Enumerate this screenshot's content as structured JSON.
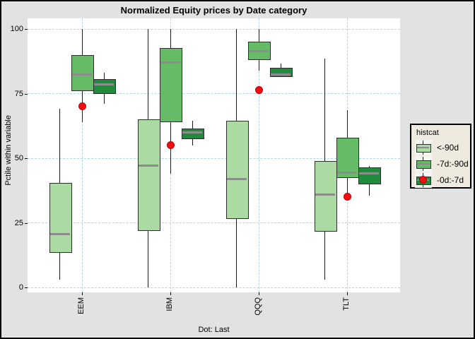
{
  "title": "Normalized Equity prices by Date category",
  "ylabel": "Pctile within variable",
  "caption": "Dot: Last",
  "legend": {
    "title": "histcat",
    "items": [
      {
        "label": "<-90d",
        "type": "box",
        "color": "#ABDBA2"
      },
      {
        "label": "-7d:-90d",
        "type": "box",
        "color": "#65BB66"
      },
      {
        "label": "-0d:-7d",
        "type": "box-dot",
        "color": "#1F8B3D",
        "dot_color": "#EE1010"
      }
    ]
  },
  "colors": {
    "outer_background": "#E2E2E2",
    "panel_background": "#FFFFFF",
    "gridline": "#ADD8E6",
    "box_border": "#2E2E2E",
    "median_line": "#8C8C8C",
    "whisker": "#1C1C1C",
    "dot_red": "#EE1010",
    "legend_background": "#EFEADF"
  },
  "chart_data": {
    "type": "boxplot",
    "title": "Normalized Equity prices by Date category",
    "xlabel": "Dot: Last",
    "ylabel": "Pctile within variable",
    "categories": [
      "EEM",
      "IBM",
      "QQQ",
      "TLT"
    ],
    "y_ticks": [
      0,
      25,
      50,
      75,
      100
    ],
    "ylim": [
      0,
      100
    ],
    "grid": "dashed",
    "legend_position": "right",
    "series": [
      {
        "name": "<-90d",
        "color": "#ABDBA2",
        "boxes": [
          {
            "low": 3,
            "q1": 14,
            "median": 20.5,
            "q3": 40.5,
            "high": 69
          },
          {
            "low": 0,
            "q1": 22.5,
            "median": 47,
            "q3": 65,
            "high": 100
          },
          {
            "low": 0,
            "q1": 27,
            "median": 42,
            "q3": 64.5,
            "high": 100
          },
          {
            "low": 3,
            "q1": 22,
            "median": 36,
            "q3": 49,
            "high": 88.5
          }
        ]
      },
      {
        "name": "-7d:-90d",
        "color": "#65BB66",
        "boxes": [
          {
            "low": 64,
            "q1": 76.5,
            "median": 82.5,
            "q3": 90,
            "high": 100
          },
          {
            "low": 44,
            "q1": 64.5,
            "median": 87,
            "q3": 92.5,
            "high": 100
          },
          {
            "low": 84,
            "q1": 88.5,
            "median": 91.5,
            "q3": 95,
            "high": 100
          },
          {
            "low": 36,
            "q1": 43,
            "median": 44.5,
            "q3": 58,
            "high": 68.5
          }
        ]
      },
      {
        "name": "-0d:-7d",
        "color": "#1F8B3D",
        "boxes": [
          {
            "low": 71,
            "q1": 75.5,
            "median": 78.5,
            "q3": 80.5,
            "high": 83
          },
          {
            "low": 55,
            "q1": 58,
            "median": 60,
            "q3": 61.5,
            "high": 64.5
          },
          {
            "low": 81.5,
            "q1": 82,
            "median": 82.5,
            "q3": 85,
            "high": 86.5
          },
          {
            "low": 35.5,
            "q1": 40.5,
            "median": 44,
            "q3": 46.5,
            "high": 47
          }
        ]
      }
    ],
    "dots": {
      "name": "Last",
      "color": "#EE1010",
      "values": [
        70,
        55,
        76.5,
        35
      ]
    }
  }
}
